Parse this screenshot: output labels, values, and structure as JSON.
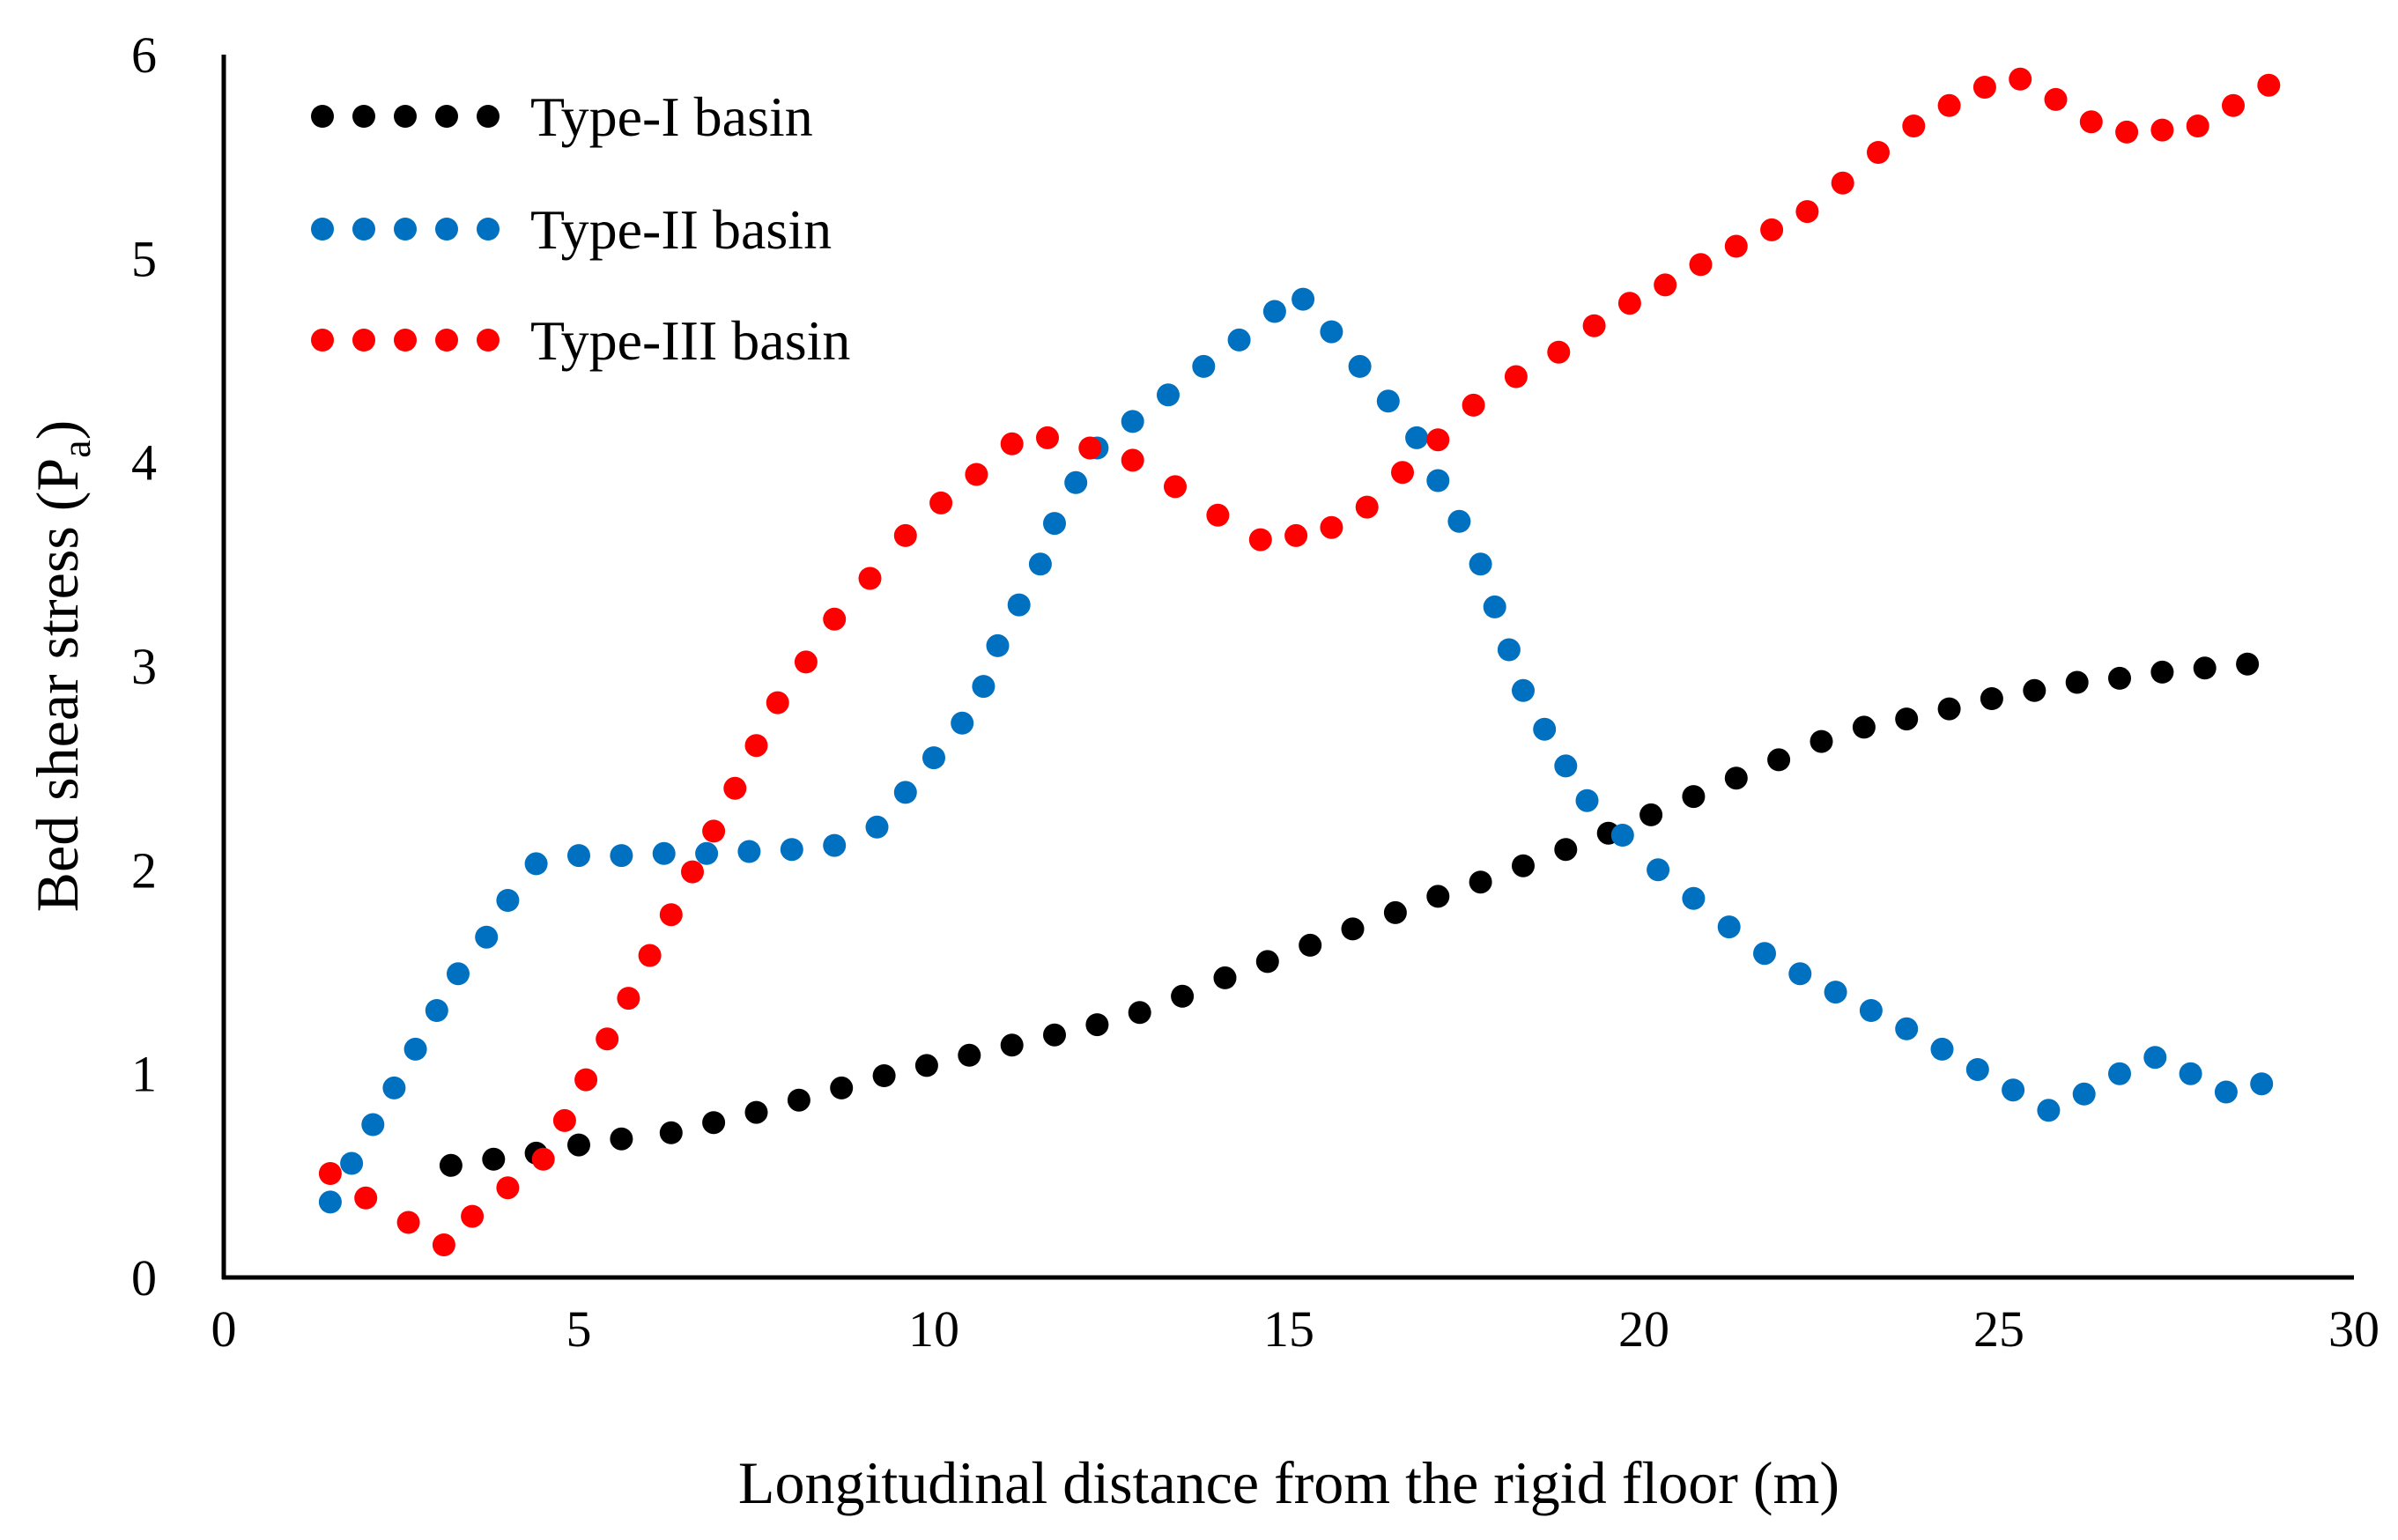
{
  "chart_data": {
    "type": "scatter",
    "xlabel": "Longitudinal distance from the rigid floor (m)",
    "ylabel_main": "Bed shear stress (P",
    "ylabel_sub": "a",
    "ylabel_close": ")",
    "xlim": [
      0,
      30
    ],
    "ylim": [
      0,
      6
    ],
    "xticks": [
      0,
      5,
      10,
      15,
      20,
      25,
      30
    ],
    "yticks": [
      0,
      1,
      2,
      3,
      4,
      5,
      6
    ],
    "xtick_labels": [
      "0",
      "5",
      "10",
      "15",
      "20",
      "25",
      "30"
    ],
    "ytick_labels": [
      "0",
      "1",
      "2",
      "3",
      "4",
      "5",
      "6"
    ],
    "grid": false,
    "legend_position": "top-left",
    "series": [
      {
        "name": "Type-I basin",
        "color": "#000000",
        "x": [
          3.2,
          3.8,
          4.4,
          5.0,
          5.6,
          6.3,
          6.9,
          7.5,
          8.1,
          8.7,
          9.3,
          9.9,
          10.5,
          11.1,
          11.7,
          12.3,
          12.9,
          13.5,
          14.1,
          14.7,
          15.3,
          15.9,
          16.5,
          17.1,
          17.7,
          18.3,
          18.9,
          19.5,
          20.1,
          20.7,
          21.3,
          21.9,
          22.5,
          23.1,
          23.7,
          24.3,
          24.9,
          25.5,
          26.1,
          26.7,
          27.3,
          27.9,
          28.5
        ],
        "y": [
          0.55,
          0.58,
          0.61,
          0.65,
          0.68,
          0.71,
          0.76,
          0.81,
          0.87,
          0.93,
          0.99,
          1.04,
          1.09,
          1.14,
          1.19,
          1.24,
          1.3,
          1.38,
          1.47,
          1.55,
          1.63,
          1.71,
          1.79,
          1.87,
          1.94,
          2.02,
          2.1,
          2.18,
          2.27,
          2.36,
          2.45,
          2.54,
          2.63,
          2.7,
          2.74,
          2.79,
          2.84,
          2.88,
          2.92,
          2.94,
          2.97,
          2.99,
          3.01
        ]
      },
      {
        "name": "Type-II basin",
        "color": "#0070C0",
        "x": [
          1.5,
          1.8,
          2.1,
          2.4,
          2.7,
          3.0,
          3.3,
          3.7,
          4.0,
          4.4,
          5.0,
          5.6,
          6.2,
          6.8,
          7.4,
          8.0,
          8.6,
          9.2,
          9.6,
          10.0,
          10.4,
          10.7,
          10.9,
          11.2,
          11.5,
          11.7,
          12.0,
          12.3,
          12.8,
          13.3,
          13.8,
          14.3,
          14.8,
          15.2,
          15.6,
          16.0,
          16.4,
          16.8,
          17.1,
          17.4,
          17.7,
          17.9,
          18.1,
          18.3,
          18.6,
          18.9,
          19.2,
          19.7,
          20.2,
          20.7,
          21.2,
          21.7,
          22.2,
          22.7,
          23.2,
          23.7,
          24.2,
          24.7,
          25.2,
          25.7,
          26.2,
          26.7,
          27.2,
          27.7,
          28.2,
          28.7
        ],
        "y": [
          0.37,
          0.56,
          0.75,
          0.93,
          1.12,
          1.31,
          1.49,
          1.67,
          1.85,
          2.03,
          2.07,
          2.07,
          2.08,
          2.08,
          2.09,
          2.1,
          2.12,
          2.21,
          2.38,
          2.55,
          2.72,
          2.9,
          3.1,
          3.3,
          3.5,
          3.7,
          3.9,
          4.07,
          4.2,
          4.33,
          4.47,
          4.6,
          4.74,
          4.8,
          4.64,
          4.47,
          4.3,
          4.12,
          3.91,
          3.71,
          3.5,
          3.29,
          3.08,
          2.88,
          2.69,
          2.51,
          2.34,
          2.17,
          2.0,
          1.86,
          1.72,
          1.59,
          1.49,
          1.4,
          1.31,
          1.22,
          1.12,
          1.02,
          0.92,
          0.82,
          0.9,
          1.0,
          1.08,
          1.0,
          0.91,
          0.95
        ]
      },
      {
        "name": "Type-III basin",
        "color": "#FF0000",
        "x": [
          1.5,
          2.0,
          2.6,
          3.1,
          3.5,
          4.0,
          4.5,
          4.8,
          5.1,
          5.4,
          5.7,
          6.0,
          6.3,
          6.6,
          6.9,
          7.2,
          7.5,
          7.8,
          8.2,
          8.6,
          9.1,
          9.6,
          10.1,
          10.6,
          11.1,
          11.6,
          12.2,
          12.8,
          13.4,
          14.0,
          14.6,
          15.1,
          15.6,
          16.1,
          16.6,
          17.1,
          17.6,
          18.2,
          18.8,
          19.3,
          19.8,
          20.3,
          20.8,
          21.3,
          21.8,
          22.3,
          22.8,
          23.3,
          23.8,
          24.3,
          24.8,
          25.3,
          25.8,
          26.3,
          26.8,
          27.3,
          27.8,
          28.3,
          28.8
        ],
        "y": [
          0.51,
          0.39,
          0.27,
          0.16,
          0.3,
          0.44,
          0.58,
          0.77,
          0.97,
          1.17,
          1.37,
          1.58,
          1.78,
          1.99,
          2.19,
          2.4,
          2.61,
          2.82,
          3.02,
          3.23,
          3.43,
          3.64,
          3.8,
          3.94,
          4.09,
          4.12,
          4.07,
          4.01,
          3.88,
          3.74,
          3.62,
          3.64,
          3.68,
          3.78,
          3.95,
          4.11,
          4.28,
          4.42,
          4.54,
          4.67,
          4.78,
          4.87,
          4.97,
          5.06,
          5.14,
          5.23,
          5.37,
          5.52,
          5.65,
          5.75,
          5.84,
          5.88,
          5.78,
          5.67,
          5.62,
          5.63,
          5.65,
          5.75,
          5.85
        ]
      }
    ]
  }
}
